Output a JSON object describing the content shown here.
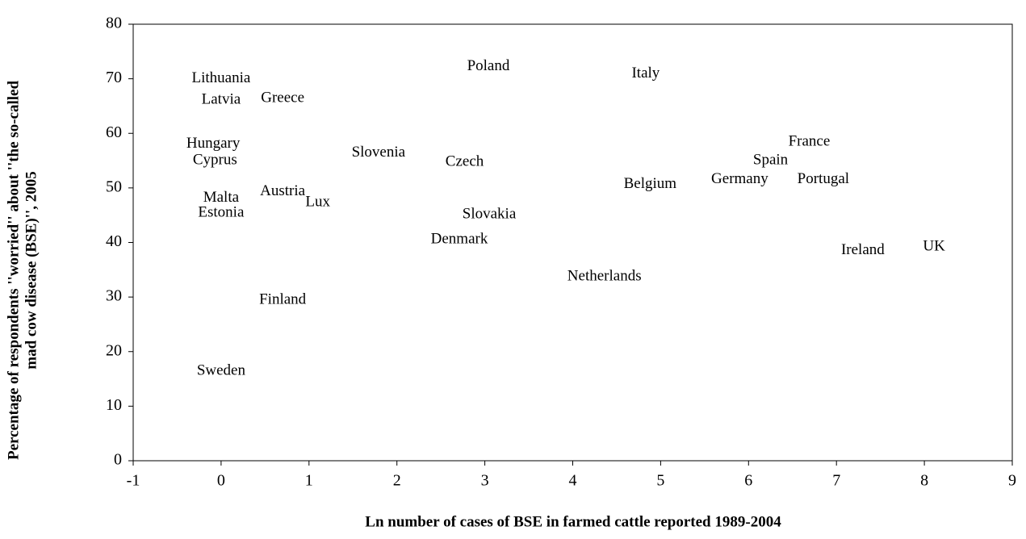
{
  "chart_data": {
    "type": "scatter",
    "x_label": "Ln number of cases of BSE in farmed cattle reported 1989-2004",
    "y_label": [
      "Percentage of respondents ''worried'' about ''the so-called",
      "mad cow disease (BSE)'', 2005"
    ],
    "xlim": [
      -1,
      9
    ],
    "ylim": [
      0,
      80
    ],
    "xticks": [
      -1,
      0,
      1,
      2,
      3,
      4,
      5,
      6,
      7,
      8,
      9
    ],
    "yticks": [
      0,
      10,
      20,
      30,
      40,
      50,
      60,
      70,
      80
    ],
    "points": [
      {
        "label": "Lithuania",
        "x": 0.0,
        "y": 70.0
      },
      {
        "label": "Latvia",
        "x": 0.0,
        "y": 66.1
      },
      {
        "label": "Greece",
        "x": 0.7,
        "y": 66.4
      },
      {
        "label": "Poland",
        "x": 3.04,
        "y": 72.2
      },
      {
        "label": "Italy",
        "x": 4.83,
        "y": 70.9
      },
      {
        "label": "Hungary",
        "x": -0.09,
        "y": 58.0
      },
      {
        "label": "Cyprus",
        "x": -0.07,
        "y": 55.0
      },
      {
        "label": "Slovenia",
        "x": 1.79,
        "y": 56.4
      },
      {
        "label": "Czech",
        "x": 2.77,
        "y": 54.7
      },
      {
        "label": "France",
        "x": 6.69,
        "y": 58.4
      },
      {
        "label": "Spain",
        "x": 6.25,
        "y": 55.0
      },
      {
        "label": "Germany",
        "x": 5.9,
        "y": 51.5
      },
      {
        "label": "Portugal",
        "x": 6.85,
        "y": 51.5
      },
      {
        "label": "Belgium",
        "x": 4.88,
        "y": 50.6
      },
      {
        "label": "Malta",
        "x": 0.0,
        "y": 48.1
      },
      {
        "label": "Austria",
        "x": 0.7,
        "y": 49.3
      },
      {
        "label": "Lux",
        "x": 1.1,
        "y": 47.3
      },
      {
        "label": "Estonia",
        "x": 0.0,
        "y": 45.4
      },
      {
        "label": "Slovakia",
        "x": 3.05,
        "y": 45.1
      },
      {
        "label": "Denmark",
        "x": 2.71,
        "y": 40.5
      },
      {
        "label": "Ireland",
        "x": 7.3,
        "y": 38.5
      },
      {
        "label": "UK",
        "x": 8.11,
        "y": 39.2
      },
      {
        "label": "Netherlands",
        "x": 4.36,
        "y": 33.7
      },
      {
        "label": "Finland",
        "x": 0.7,
        "y": 29.4
      },
      {
        "label": "Sweden",
        "x": 0.0,
        "y": 16.4
      }
    ]
  }
}
